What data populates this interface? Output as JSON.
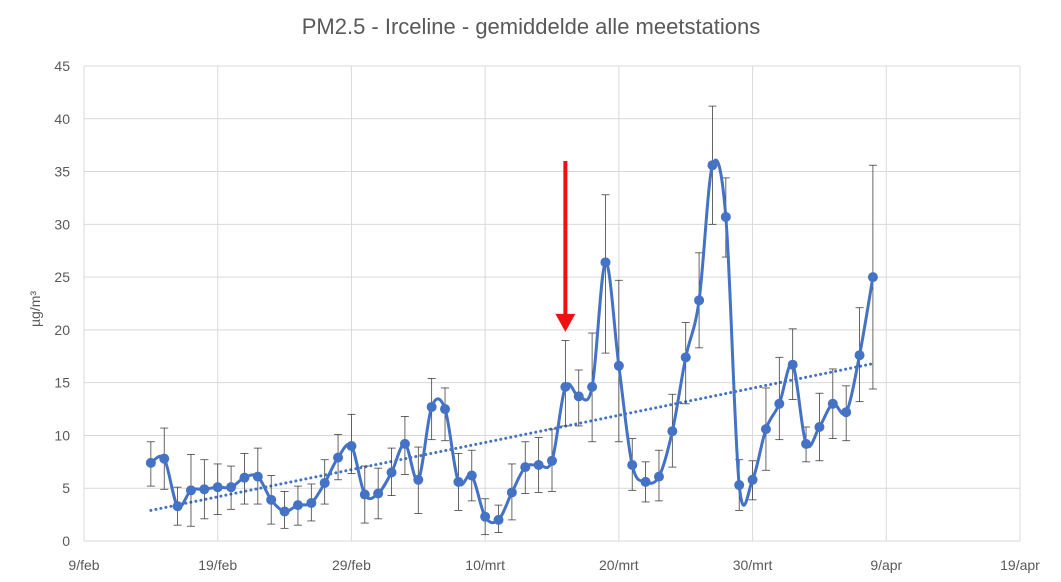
{
  "chart_data": {
    "type": "line",
    "title": "PM2.5 - Irceline - gemiddelde alle meetstations",
    "xlabel": "",
    "ylabel": "µg/m³",
    "ylim": [
      0,
      45
    ],
    "yticks": [
      0,
      5,
      10,
      15,
      20,
      25,
      30,
      35,
      40,
      45
    ],
    "xlim": [
      0,
      70
    ],
    "xticks": [
      {
        "x": 0,
        "label": "9/feb"
      },
      {
        "x": 10,
        "label": "19/feb"
      },
      {
        "x": 20,
        "label": "29/feb"
      },
      {
        "x": 30,
        "label": "10/mrt"
      },
      {
        "x": 40,
        "label": "20/mrt"
      },
      {
        "x": 50,
        "label": "30/mrt"
      },
      {
        "x": 60,
        "label": "9/apr"
      },
      {
        "x": 70,
        "label": "19/apr"
      }
    ],
    "grid": true,
    "series": [
      {
        "name": "PM2.5",
        "color": "#4472c4",
        "x": [
          5,
          6,
          7,
          8,
          9,
          10,
          11,
          12,
          13,
          14,
          15,
          16,
          17,
          18,
          19,
          20,
          21,
          22,
          23,
          24,
          25,
          26,
          27,
          28,
          29,
          30,
          31,
          32,
          33,
          34,
          35,
          36,
          37,
          38,
          39,
          40,
          41,
          42,
          43,
          44,
          45,
          46,
          47,
          48,
          49,
          50,
          51,
          52,
          53,
          54,
          55,
          56,
          57,
          58,
          59
        ],
        "values": [
          7.4,
          7.8,
          3.3,
          4.8,
          4.9,
          5.1,
          5.1,
          6.0,
          6.1,
          3.9,
          2.8,
          3.4,
          3.6,
          5.5,
          7.9,
          9.0,
          4.4,
          4.5,
          6.5,
          9.2,
          5.8,
          12.7,
          12.5,
          5.6,
          6.2,
          2.3,
          2.0,
          4.6,
          7.0,
          7.2,
          7.6,
          14.6,
          13.7,
          14.6,
          26.4,
          16.6,
          7.2,
          5.6,
          6.1,
          10.4,
          17.4,
          22.8,
          35.6,
          30.7,
          5.3,
          5.8,
          10.6,
          13.0,
          16.7,
          9.2,
          10.8,
          13.0,
          12.2,
          17.6,
          25.0
        ],
        "err_low": [
          2.2,
          2.9,
          1.8,
          3.4,
          2.8,
          2.6,
          2.1,
          2.5,
          2.6,
          2.3,
          1.6,
          1.9,
          1.7,
          2.0,
          2.1,
          2.6,
          2.7,
          2.4,
          2.2,
          2.9,
          3.2,
          3.1,
          3.0,
          2.7,
          2.4,
          1.7,
          1.2,
          2.6,
          2.5,
          2.6,
          2.9,
          3.7,
          2.8,
          5.2,
          8.6,
          7.2,
          2.4,
          1.9,
          2.3,
          3.4,
          4.4,
          4.5,
          5.6,
          3.8,
          2.4,
          1.9,
          3.9,
          3.4,
          3.3,
          1.7,
          3.2,
          3.3,
          2.7,
          4.4,
          10.6
        ],
        "err_high": [
          2.0,
          2.9,
          1.8,
          3.4,
          2.8,
          2.2,
          2.0,
          2.3,
          2.7,
          2.3,
          1.9,
          1.8,
          1.8,
          2.2,
          2.2,
          3.0,
          2.7,
          2.4,
          2.3,
          2.6,
          3.1,
          2.7,
          2.0,
          2.7,
          2.4,
          1.7,
          1.4,
          2.7,
          2.4,
          2.6,
          3.0,
          4.4,
          2.5,
          5.1,
          6.4,
          8.1,
          2.5,
          1.9,
          2.5,
          3.5,
          3.3,
          4.5,
          5.6,
          3.7,
          2.4,
          1.8,
          3.9,
          4.4,
          3.4,
          1.6,
          3.2,
          3.3,
          2.5,
          4.5,
          10.6
        ]
      }
    ],
    "trendline": {
      "type": "linear",
      "style": "dotted",
      "color": "#4472c4",
      "x": [
        5,
        59
      ],
      "values": [
        2.9,
        16.8
      ]
    },
    "annotation": {
      "type": "arrow",
      "direction": "down",
      "color": "#ee1111",
      "x": 36,
      "from_value": 36.0,
      "to_value": 20.0
    }
  }
}
